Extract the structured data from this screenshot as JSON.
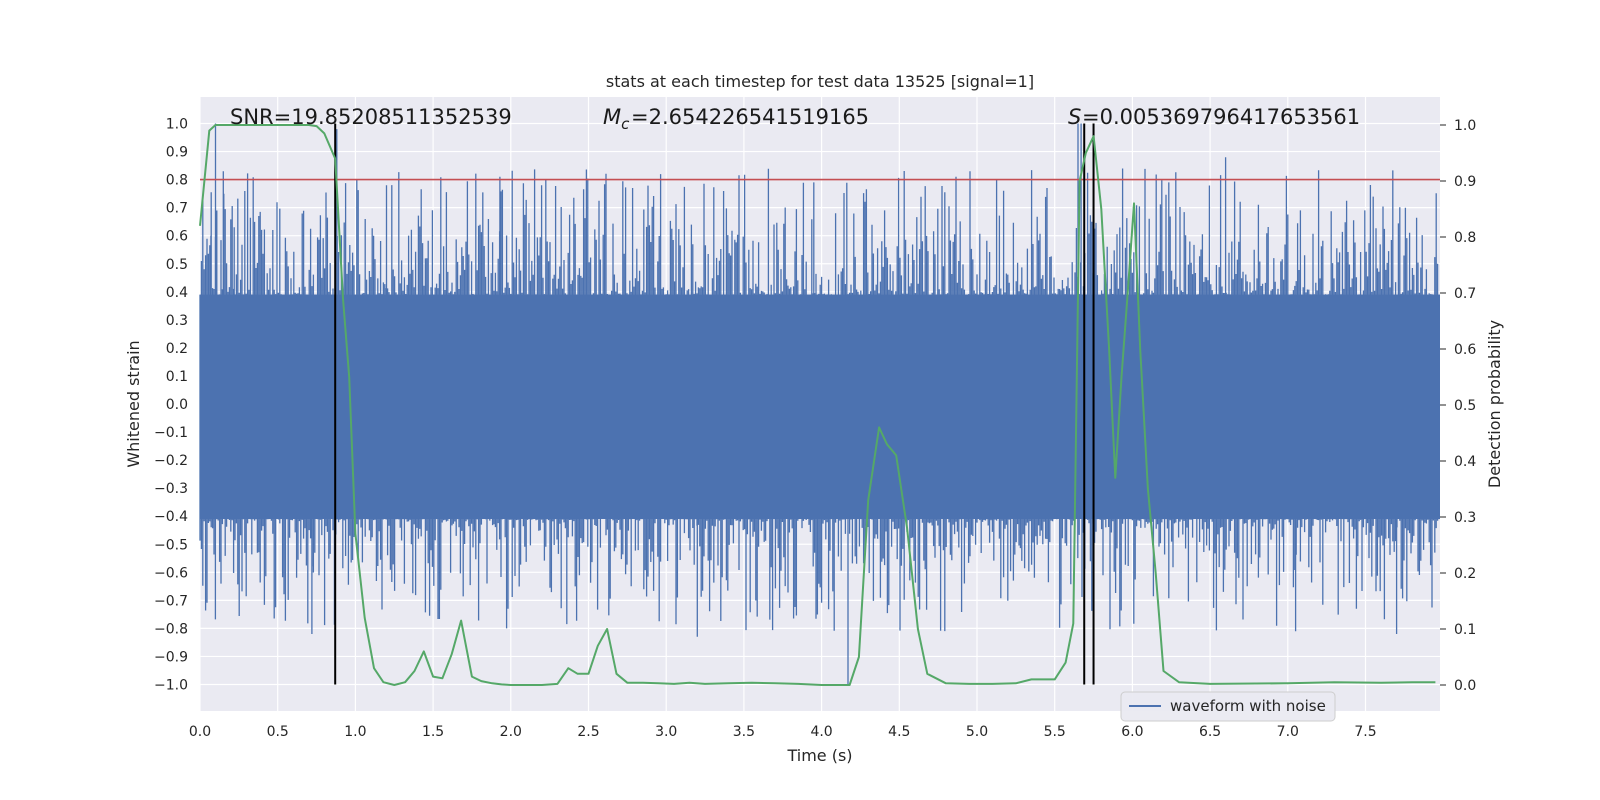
{
  "chart_data": {
    "type": "line",
    "title": "stats at each timestep for test data 13525 [signal=1]",
    "xlabel": "Time (s)",
    "ylabel": "Whitened strain",
    "y2label": "Detection probability",
    "xlim": [
      0,
      8
    ],
    "ylim": [
      -1.1,
      1.1
    ],
    "y2lim": [
      -0.045,
      1.045
    ],
    "x_ticks": [
      "0.0",
      "0.5",
      "1.0",
      "1.5",
      "2.0",
      "2.5",
      "3.0",
      "3.5",
      "4.0",
      "4.5",
      "5.0",
      "5.5",
      "6.0",
      "6.5",
      "7.0",
      "7.5"
    ],
    "y_ticks": [
      "1.0",
      "0.9",
      "0.8",
      "0.7",
      "0.6",
      "0.5",
      "0.4",
      "0.3",
      "0.2",
      "0.1",
      "0.0",
      "−0.1",
      "−0.2",
      "−0.3",
      "−0.4",
      "−0.5",
      "−0.6",
      "−0.7",
      "−0.8",
      "−0.9",
      "−1.0"
    ],
    "y2_ticks": [
      "1.0",
      "0.9",
      "0.8",
      "0.7",
      "0.6",
      "0.5",
      "0.4",
      "0.3",
      "0.2",
      "0.1",
      "0.0"
    ],
    "grid": true,
    "legend_placement": "lower-right",
    "annotations": {
      "snr": "SNR=19.85208511352539",
      "mc": "=2.654226541519165",
      "s": "=0.005369796417653561"
    },
    "threshold": {
      "axis": "y",
      "value": 0.8,
      "color": "#c44e52"
    },
    "vertical_markers": [
      0.87,
      5.69,
      5.75
    ],
    "series": [
      {
        "name": "waveform with noise",
        "axis": "y",
        "color": "#4c72b0",
        "kind": "noise-band",
        "band_low": -0.41,
        "band_high": 0.39
      },
      {
        "axis": "y2",
        "color": "#55a868",
        "x": [
          0.0,
          0.06,
          0.1,
          0.2,
          0.3,
          0.4,
          0.5,
          0.6,
          0.7,
          0.75,
          0.8,
          0.87,
          0.92,
          0.96,
          1.0,
          1.06,
          1.12,
          1.18,
          1.25,
          1.32,
          1.38,
          1.44,
          1.5,
          1.56,
          1.62,
          1.68,
          1.75,
          1.81,
          1.88,
          1.94,
          2.0,
          2.1,
          2.2,
          2.3,
          2.37,
          2.43,
          2.5,
          2.56,
          2.62,
          2.68,
          2.75,
          2.85,
          2.95,
          3.05,
          3.15,
          3.25,
          3.4,
          3.55,
          3.7,
          3.85,
          4.0,
          4.1,
          4.18,
          4.24,
          4.3,
          4.37,
          4.42,
          4.48,
          4.55,
          4.62,
          4.68,
          4.8,
          4.95,
          5.1,
          5.25,
          5.35,
          5.5,
          5.57,
          5.62,
          5.66,
          5.7,
          5.75,
          5.8,
          5.85,
          5.89,
          5.93,
          5.97,
          6.01,
          6.05,
          6.1,
          6.15,
          6.2,
          6.3,
          6.5,
          7.0,
          7.3,
          7.6,
          7.8,
          7.95
        ],
        "y": [
          0.82,
          0.99,
          1.0,
          1.0,
          1.0,
          1.0,
          1.0,
          1.0,
          1.0,
          0.998,
          0.985,
          0.94,
          0.69,
          0.55,
          0.27,
          0.12,
          0.03,
          0.005,
          0.0,
          0.005,
          0.025,
          0.06,
          0.015,
          0.012,
          0.055,
          0.115,
          0.015,
          0.007,
          0.003,
          0.001,
          0.0,
          0.0,
          0.0,
          0.002,
          0.03,
          0.02,
          0.02,
          0.07,
          0.1,
          0.02,
          0.004,
          0.004,
          0.003,
          0.002,
          0.004,
          0.002,
          0.003,
          0.004,
          0.003,
          0.002,
          0.0,
          0.0,
          0.0,
          0.05,
          0.33,
          0.46,
          0.43,
          0.41,
          0.28,
          0.1,
          0.02,
          0.003,
          0.002,
          0.002,
          0.003,
          0.01,
          0.01,
          0.04,
          0.11,
          0.9,
          0.95,
          0.98,
          0.85,
          0.6,
          0.37,
          0.55,
          0.7,
          0.86,
          0.6,
          0.35,
          0.2,
          0.025,
          0.005,
          0.002,
          0.003,
          0.005,
          0.004,
          0.005,
          0.005
        ]
      }
    ]
  }
}
